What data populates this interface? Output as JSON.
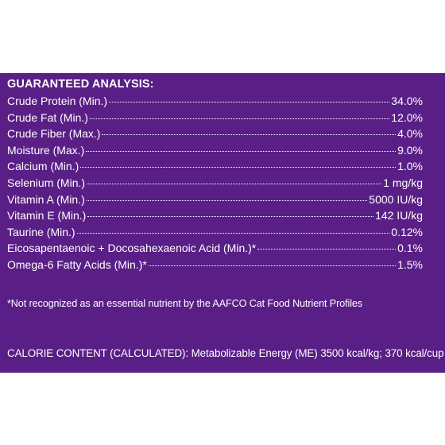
{
  "panel": {
    "heading": "GUARANTEED ANALYSIS:",
    "rows": [
      {
        "label": "Crude Protein (Min.)",
        "value": "34.0%"
      },
      {
        "label": "Crude Fat (Min.)",
        "value": "12.0%"
      },
      {
        "label": "Crude Fiber (Max.)",
        "value": "4.0%"
      },
      {
        "label": "Moisture (Max.)",
        "value": "9.0%"
      },
      {
        "label": "Calcium (Min.)",
        "value": "1.0%"
      },
      {
        "label": "Selenium (Min.)",
        "value": "1 mg/kg"
      },
      {
        "label": "Vitamin A (Min.)",
        "value": "5000 IU/kg"
      },
      {
        "label": "Vitamin E (Min.)",
        "value": "142 IU/kg"
      },
      {
        "label": "Taurine (Min.)",
        "value": "0.12%"
      },
      {
        "label": "Eicosapentaenoic + Docosahexaenoic Acid (Min.)*",
        "value": "0.1%"
      },
      {
        "label": "Omega-6 Fatty Acids (Min.)*",
        "value": "1.5%"
      }
    ],
    "footnote": "*Not recognized as an essential nutrient by the AAFCO Cat Food Nutrient Profiles",
    "calorie": "CALORIE CONTENT (CALCULATED): Metabolizable Energy (ME) 3500 kcal/kg; 370 kcal/cup",
    "background_color": "#5a1f87",
    "text_color": "#ffffff"
  }
}
